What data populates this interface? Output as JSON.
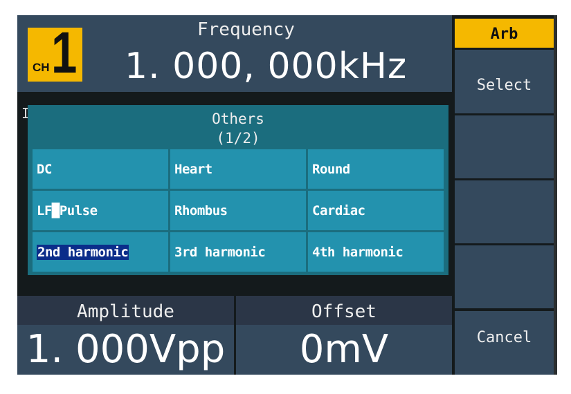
{
  "channel": {
    "label": "CH",
    "number": "1"
  },
  "frequency": {
    "label": "Frequency",
    "value": "1. 000, 000kHz"
  },
  "hidden_label_stub": "I",
  "dialog": {
    "title": "Others",
    "page": "(1/2)",
    "items": [
      "DC",
      "Heart",
      "Round",
      "LF█Pulse",
      "Rhombus",
      "Cardiac",
      "2nd harmonic",
      "3rd harmonic",
      "4th harmonic"
    ],
    "selected_index": 6
  },
  "amplitude": {
    "label": "Amplitude",
    "value": "1. 000Vpp"
  },
  "offset": {
    "label": "Offset",
    "value": "0mV"
  },
  "softkeys": {
    "arb": "Arb",
    "select": "Select",
    "empty1": "",
    "empty2": "",
    "empty3": "",
    "cancel": "Cancel"
  },
  "colors": {
    "accent": "#f5b800",
    "panel": "#34495d",
    "dialog": "#1b6d7e",
    "cell": "#2392ae",
    "selection": "#0b2d8a"
  }
}
